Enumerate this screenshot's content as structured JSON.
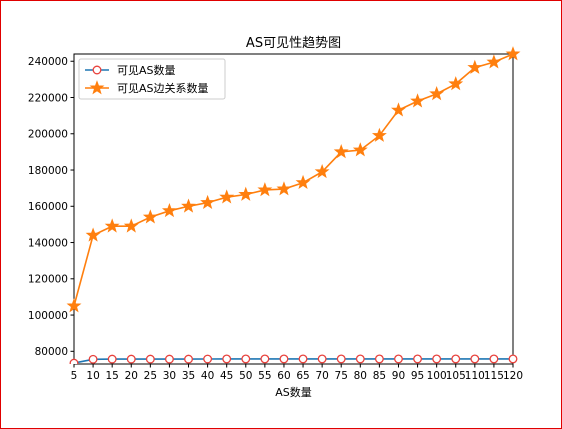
{
  "chart_data": {
    "type": "line",
    "title": "AS可见性趋势图",
    "xlabel": "AS数量",
    "ylabel": "",
    "x": [
      5,
      10,
      15,
      20,
      25,
      30,
      35,
      40,
      45,
      50,
      55,
      60,
      65,
      70,
      75,
      80,
      85,
      90,
      95,
      100,
      105,
      110,
      115,
      120
    ],
    "xticks": [
      "5",
      "10",
      "15",
      "20",
      "25",
      "30",
      "35",
      "40",
      "45",
      "50",
      "55",
      "60",
      "65",
      "70",
      "75",
      "80",
      "85",
      "90",
      "95",
      "100",
      "105",
      "110",
      "115",
      "120"
    ],
    "xlim": [
      5,
      120
    ],
    "ylim": [
      73000,
      244000
    ],
    "yticks": [
      80000,
      100000,
      120000,
      140000,
      160000,
      180000,
      200000,
      220000,
      240000
    ],
    "ytick_labels": [
      "80000",
      "100000",
      "120000",
      "140000",
      "160000",
      "180000",
      "200000",
      "220000",
      "240000"
    ],
    "grid": false,
    "legend_position": "top-left",
    "series": [
      {
        "name": "可见AS数量",
        "marker": "circle-open",
        "color": "#1f77b4",
        "marker_edge_color": "#e8413c",
        "values": [
          73500,
          75600,
          75700,
          75700,
          75700,
          75700,
          75700,
          75750,
          75800,
          75800,
          75800,
          75800,
          75800,
          75800,
          75800,
          75800,
          75800,
          75800,
          75800,
          75800,
          75800,
          75800,
          75800,
          75800
        ]
      },
      {
        "name": "可见AS边关系数量",
        "marker": "star",
        "color": "#ff7f0e",
        "values": [
          105000,
          144000,
          149000,
          149000,
          154000,
          157500,
          160000,
          162000,
          165000,
          166500,
          169000,
          169500,
          173000,
          179000,
          190000,
          191000,
          199000,
          213000,
          218000,
          222000,
          227500,
          236500,
          239500,
          244000
        ]
      }
    ]
  }
}
